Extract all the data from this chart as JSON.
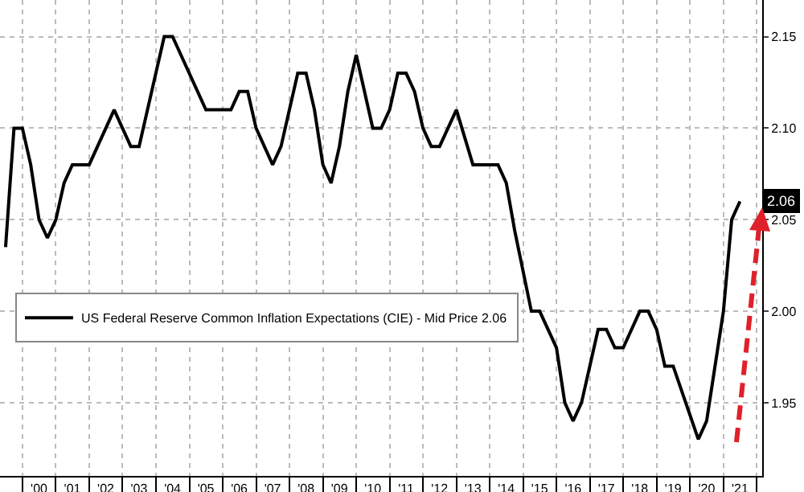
{
  "chart_data": {
    "type": "line",
    "x": [
      "1999-07",
      "1999-10",
      "2000-01",
      "2000-04",
      "2000-07",
      "2000-10",
      "2001-01",
      "2001-04",
      "2001-07",
      "2002-01",
      "2002-10",
      "2003-04",
      "2003-07",
      "2004-04",
      "2004-07",
      "2005-07",
      "2006-04",
      "2006-07",
      "2006-10",
      "2007-01",
      "2007-07",
      "2007-10",
      "2008-04",
      "2008-07",
      "2008-10",
      "2009-01",
      "2009-04",
      "2009-07",
      "2009-10",
      "2010-01",
      "2010-07",
      "2010-10",
      "2011-01",
      "2011-04",
      "2011-07",
      "2011-10",
      "2012-01",
      "2012-04",
      "2012-07",
      "2013-01",
      "2013-07",
      "2014-04",
      "2014-07",
      "2014-10",
      "2015-04",
      "2015-07",
      "2016-01",
      "2016-04",
      "2016-07",
      "2016-10",
      "2017-04",
      "2017-07",
      "2017-10",
      "2018-01",
      "2018-07",
      "2018-10",
      "2019-01",
      "2019-04",
      "2019-07",
      "2020-04",
      "2020-07",
      "2020-10",
      "2021-01",
      "2021-04",
      "2021-07"
    ],
    "series": [
      {
        "name": "US Federal Reserve Common Inflation Expectations (CIE) - Mid Price 2.06",
        "color": "#000000",
        "values": [
          2.035,
          2.1,
          2.1,
          2.08,
          2.05,
          2.04,
          2.05,
          2.07,
          2.08,
          2.08,
          2.11,
          2.09,
          2.09,
          2.15,
          2.15,
          2.11,
          2.11,
          2.12,
          2.12,
          2.1,
          2.08,
          2.09,
          2.13,
          2.13,
          2.11,
          2.08,
          2.07,
          2.09,
          2.12,
          2.14,
          2.1,
          2.1,
          2.11,
          2.13,
          2.13,
          2.12,
          2.1,
          2.09,
          2.09,
          2.11,
          2.08,
          2.08,
          2.07,
          2.044,
          2.0,
          2.0,
          1.98,
          1.95,
          1.94,
          1.95,
          1.99,
          1.99,
          1.98,
          1.98,
          2.0,
          2.0,
          1.99,
          1.97,
          1.97,
          1.93,
          1.94,
          1.97,
          2.0,
          2.05,
          2.06
        ]
      }
    ],
    "xlim": [
      "1999-05-01",
      "2022-03-01"
    ],
    "xticks": [
      {
        "value": "2000-01-01",
        "label": null
      },
      {
        "value": "2000-07-01",
        "label": "'00"
      },
      {
        "value": "2001-01-01",
        "label": null
      },
      {
        "value": "2001-07-01",
        "label": "'01"
      },
      {
        "value": "2002-01-01",
        "label": null
      },
      {
        "value": "2002-07-01",
        "label": "'02"
      },
      {
        "value": "2003-01-01",
        "label": null
      },
      {
        "value": "2003-07-01",
        "label": "'03"
      },
      {
        "value": "2004-01-01",
        "label": null
      },
      {
        "value": "2004-07-01",
        "label": "'04"
      },
      {
        "value": "2005-01-01",
        "label": null
      },
      {
        "value": "2005-07-01",
        "label": "'05"
      },
      {
        "value": "2006-01-01",
        "label": null
      },
      {
        "value": "2006-07-01",
        "label": "'06"
      },
      {
        "value": "2007-01-01",
        "label": null
      },
      {
        "value": "2007-07-01",
        "label": "'07"
      },
      {
        "value": "2008-01-01",
        "label": null
      },
      {
        "value": "2008-07-01",
        "label": "'08"
      },
      {
        "value": "2009-01-01",
        "label": null
      },
      {
        "value": "2009-07-01",
        "label": "'09"
      },
      {
        "value": "2010-01-01",
        "label": null
      },
      {
        "value": "2010-07-01",
        "label": "'10"
      },
      {
        "value": "2011-01-01",
        "label": null
      },
      {
        "value": "2011-07-01",
        "label": "'11"
      },
      {
        "value": "2012-01-01",
        "label": null
      },
      {
        "value": "2012-07-01",
        "label": "'12"
      },
      {
        "value": "2013-01-01",
        "label": null
      },
      {
        "value": "2013-07-01",
        "label": "'13"
      },
      {
        "value": "2014-01-01",
        "label": null
      },
      {
        "value": "2014-07-01",
        "label": "'14"
      },
      {
        "value": "2015-01-01",
        "label": null
      },
      {
        "value": "2015-07-01",
        "label": "'15"
      },
      {
        "value": "2016-01-01",
        "label": null
      },
      {
        "value": "2016-07-01",
        "label": "'16"
      },
      {
        "value": "2017-01-01",
        "label": null
      },
      {
        "value": "2017-07-01",
        "label": "'17"
      },
      {
        "value": "2018-01-01",
        "label": null
      },
      {
        "value": "2018-07-01",
        "label": "'18"
      },
      {
        "value": "2019-01-01",
        "label": null
      },
      {
        "value": "2019-07-01",
        "label": "'19"
      },
      {
        "value": "2020-01-01",
        "label": null
      },
      {
        "value": "2020-07-01",
        "label": "'20"
      },
      {
        "value": "2021-01-01",
        "label": null
      },
      {
        "value": "2021-07-01",
        "label": "'21"
      },
      {
        "value": "2022-01-01",
        "label": null
      }
    ],
    "ylim": [
      1.91,
      2.17
    ],
    "yticks": [
      {
        "value": 1.95,
        "label": "1.95"
      },
      {
        "value": 2.0,
        "label": "2.00"
      },
      {
        "value": 2.05,
        "label": "2.05"
      },
      {
        "value": 2.1,
        "label": "2.10"
      },
      {
        "value": 2.15,
        "label": "2.15"
      }
    ],
    "annotations": [
      {
        "text": "2.06",
        "y": 2.06
      }
    ],
    "grid": true,
    "legend": "bottom left",
    "marker": "none",
    "line_style": "solid"
  }
}
